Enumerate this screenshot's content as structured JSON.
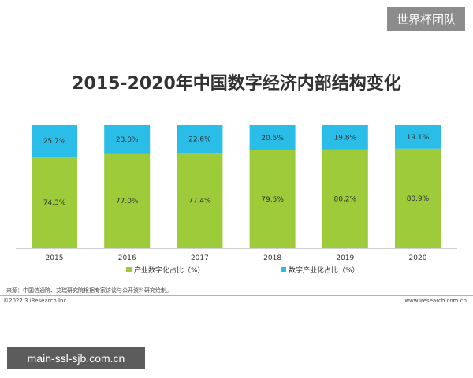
{
  "watermark_top": "世界杯团队",
  "watermark_bottom": "main-ssl-sjb.com.cn",
  "source_note": "来源：中国信通院、艾瑞研究院根据专家访谈与公开资料研究绘制。",
  "copyright": "©2022.3 iResearch Inc.",
  "site": "www.iresearch.com.cn",
  "colors": {
    "industrialization": "#9dcb3a",
    "digital_industry": "#29bde8"
  },
  "chart_data": {
    "type": "bar",
    "stacked": true,
    "percent": true,
    "title": "2015-2020年中国数字经济内部结构变化",
    "xlabel": "",
    "ylabel": "",
    "ylim": [
      0,
      100
    ],
    "grid": false,
    "legend_position": "bottom",
    "categories": [
      "2015",
      "2016",
      "2017",
      "2018",
      "2019",
      "2020"
    ],
    "series": [
      {
        "name": "产业数字化占比（%）",
        "values": [
          74.3,
          77.0,
          77.4,
          79.5,
          80.2,
          80.9
        ],
        "labels": [
          "74.3%",
          "77.0%",
          "77.4%",
          "79.5%",
          "80.2%",
          "80.9%"
        ]
      },
      {
        "name": "数字产业化占比（%）",
        "values": [
          25.7,
          23.0,
          22.6,
          20.5,
          19.8,
          19.1
        ],
        "labels": [
          "25.7%",
          "23.0%",
          "22.6%",
          "20.5%",
          "19.8%",
          "19.1%"
        ]
      }
    ]
  }
}
